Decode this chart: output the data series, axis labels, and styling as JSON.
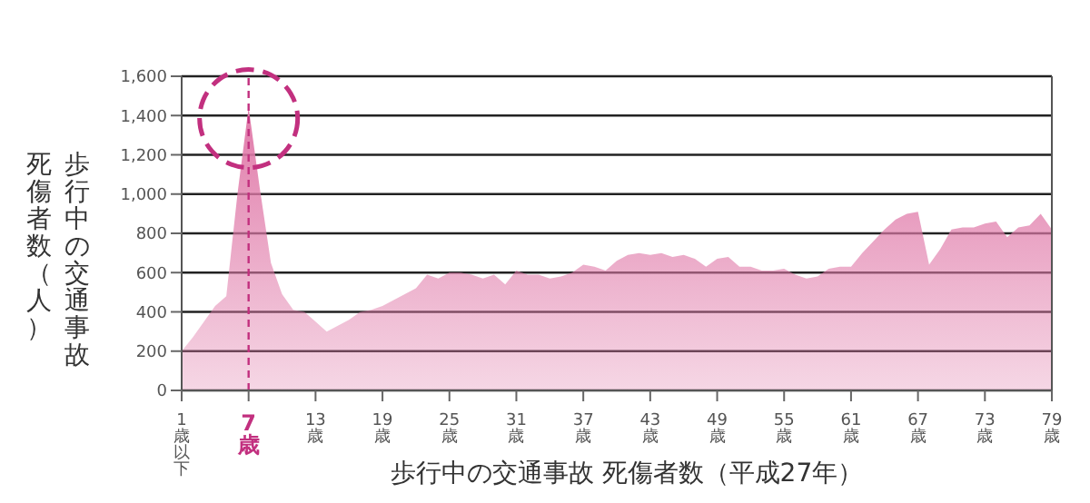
{
  "chart_data": {
    "type": "area",
    "xlabel": "歩行中の交通事故 死傷者数（平成27年）",
    "ylabel": "歩行中の交通事故死傷者数（人）",
    "x": [
      1,
      2,
      3,
      4,
      5,
      6,
      7,
      8,
      9,
      10,
      11,
      12,
      13,
      14,
      15,
      16,
      17,
      18,
      19,
      20,
      21,
      22,
      23,
      24,
      25,
      26,
      27,
      28,
      29,
      30,
      31,
      32,
      33,
      34,
      35,
      36,
      37,
      38,
      39,
      40,
      41,
      42,
      43,
      44,
      45,
      46,
      47,
      48,
      49,
      50,
      51,
      52,
      53,
      54,
      55,
      56,
      57,
      58,
      59,
      60,
      61,
      62,
      63,
      64,
      65,
      66,
      67,
      68,
      69,
      70,
      71,
      72,
      73,
      74,
      75,
      76,
      77,
      78,
      79
    ],
    "series": [
      {
        "color": "#e07aa9",
        "values": [
          200,
          270,
          350,
          430,
          480,
          1000,
          1440,
          1030,
          650,
          490,
          410,
          400,
          350,
          300,
          330,
          360,
          400,
          410,
          430,
          460,
          490,
          520,
          590,
          570,
          600,
          600,
          590,
          570,
          590,
          540,
          610,
          590,
          590,
          570,
          580,
          600,
          640,
          630,
          610,
          660,
          690,
          700,
          690,
          700,
          680,
          690,
          670,
          630,
          670,
          680,
          630,
          630,
          610,
          610,
          620,
          590,
          570,
          580,
          620,
          630,
          630,
          700,
          760,
          820,
          870,
          900,
          910,
          640,
          720,
          820,
          830,
          830,
          850,
          860,
          780,
          830,
          840,
          900,
          820
        ]
      }
    ],
    "xlim": [
      1,
      79
    ],
    "xticks": [
      {
        "value": 1,
        "label": "1歳以下"
      },
      {
        "value": 7,
        "label": "7歳"
      },
      {
        "value": 13,
        "label": "13歳"
      },
      {
        "value": 19,
        "label": "19歳"
      },
      {
        "value": 25,
        "label": "25歳"
      },
      {
        "value": 31,
        "label": "31歳"
      },
      {
        "value": 37,
        "label": "37歳"
      },
      {
        "value": 43,
        "label": "43歳"
      },
      {
        "value": 49,
        "label": "49歳"
      },
      {
        "value": 55,
        "label": "55歳"
      },
      {
        "value": 61,
        "label": "61歳"
      },
      {
        "value": 67,
        "label": "67歳"
      },
      {
        "value": 73,
        "label": "73歳"
      },
      {
        "value": 79,
        "label": "79歳"
      }
    ],
    "ylim": [
      0,
      1600
    ],
    "yticks": [
      {
        "value": 0,
        "label": "0"
      },
      {
        "value": 200,
        "label": "200"
      },
      {
        "value": 400,
        "label": "400"
      },
      {
        "value": 600,
        "label": "600"
      },
      {
        "value": 800,
        "label": "800"
      },
      {
        "value": 1000,
        "label": "1,000"
      },
      {
        "value": 1200,
        "label": "1,200"
      },
      {
        "value": 1400,
        "label": "1,400"
      },
      {
        "value": 1600,
        "label": "1,600"
      }
    ],
    "grid": "y",
    "legend": false,
    "ref_lines": [
      {
        "axis": "x",
        "value": 7,
        "color": "#c2307f",
        "line_style": "dashed"
      }
    ]
  }
}
